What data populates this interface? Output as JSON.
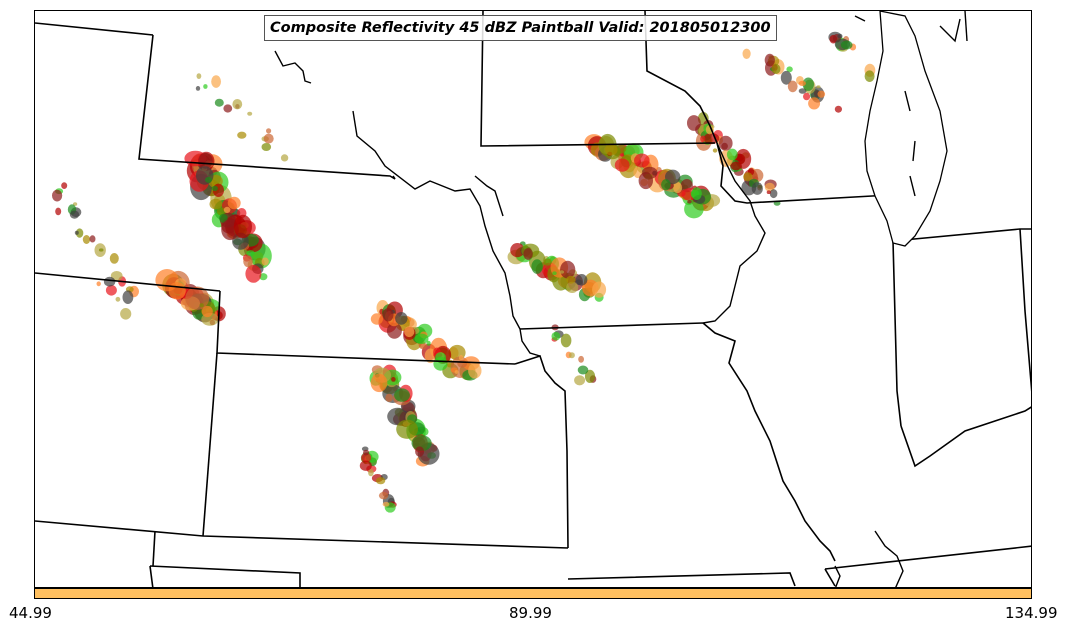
{
  "title": "Composite Reflectivity 45 dBZ Paintball Valid: 201805012300",
  "colorbar": {
    "color": "#ffc060",
    "ticks": [
      "44.99",
      "89.99",
      "134.99"
    ]
  },
  "member_colors": [
    "#e8141b",
    "#b20000",
    "#ff7f27",
    "#f9a64a",
    "#2ecc1f",
    "#1a8a1a",
    "#7a8a00",
    "#a88a00",
    "#8b1a1a",
    "#404040",
    "#b5a642",
    "#cc6633"
  ],
  "map_features": [
    "state-boundaries",
    "lake-michigan",
    "mississippi-river",
    "missouri-river"
  ]
}
